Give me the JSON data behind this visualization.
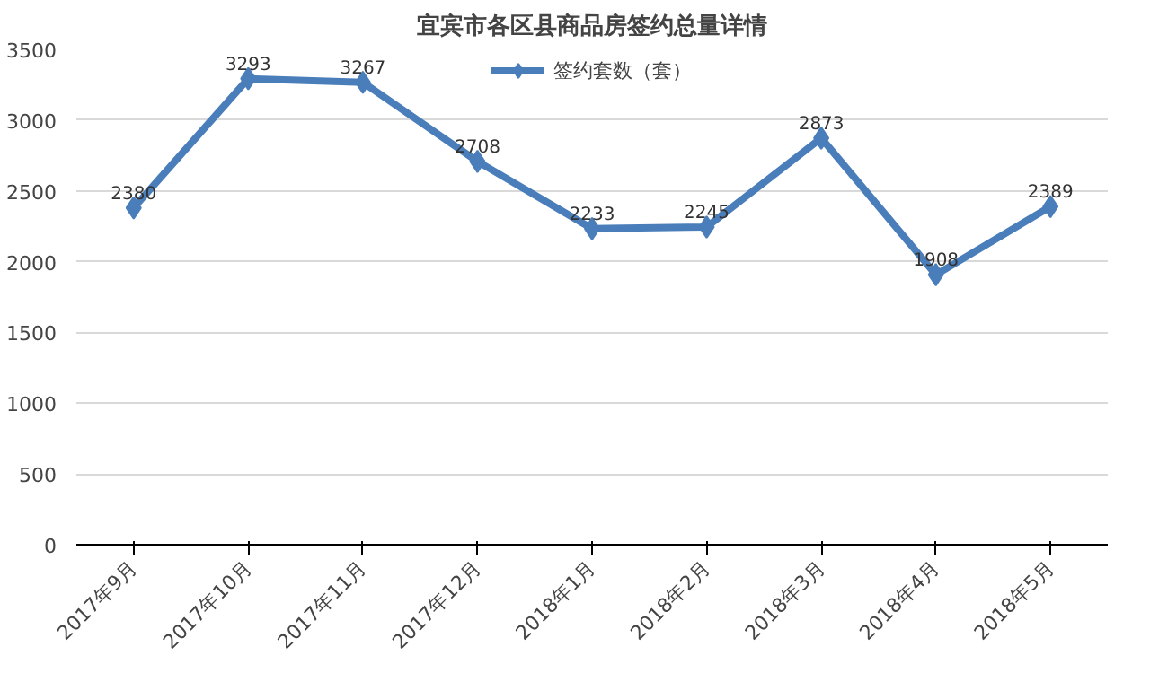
{
  "chart_data": {
    "type": "line",
    "title": "宜宾市各区县商品房签约总量详情",
    "categories": [
      "2017年9月",
      "2017年10月",
      "2017年11月",
      "2017年12月",
      "2018年1月",
      "2018年2月",
      "2018年3月",
      "2018年4月",
      "2018年5月"
    ],
    "series": [
      {
        "name": "签约套数（套）",
        "color": "#4a7ebb",
        "values": [
          2380,
          3293,
          3267,
          2708,
          2233,
          2245,
          2873,
          1908,
          2389
        ]
      }
    ],
    "ylim": [
      0,
      3500
    ],
    "yticks": [
      0,
      500,
      1000,
      1500,
      2000,
      2500,
      3000,
      3500
    ],
    "grid": "y",
    "legend": "top",
    "marker": "diamond",
    "line_style": "solid",
    "data_labels": true
  }
}
